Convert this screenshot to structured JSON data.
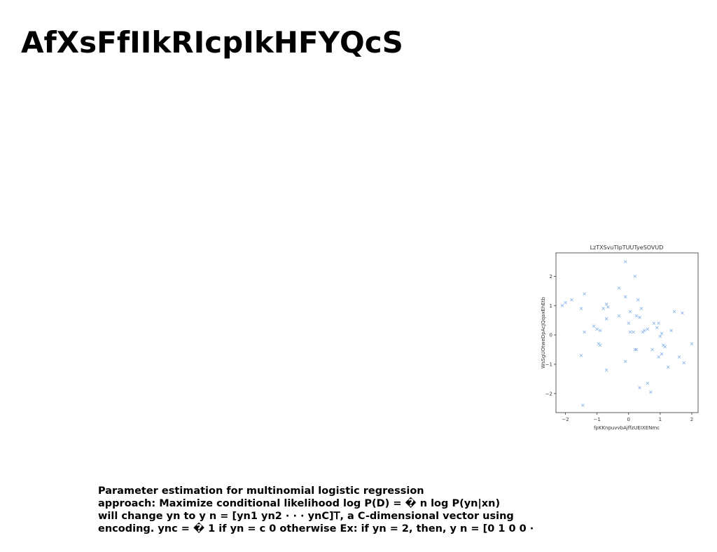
{
  "title": "AfXsFfIIkRIcpIkHFYQcS",
  "figure": {
    "chart_data": {
      "type": "scatter",
      "title": "LzTXSvuTIpTUUTyeSOVUD",
      "xlabel": "fpKKnpuvvbAjffzUEIXENmc",
      "ylabel": "WsSgUOtweDpAcJQqaxEhEtb",
      "xlim": [
        -2.3,
        2.2
      ],
      "ylim": [
        -2.65,
        2.8
      ],
      "xticks": [
        -2,
        -1,
        0,
        1,
        2
      ],
      "yticks": [
        -2,
        -1,
        0,
        1,
        2
      ],
      "xtick_labels": [
        "−2",
        "−1",
        "0",
        "1",
        "2"
      ],
      "ytick_labels": [
        "−2",
        "−1",
        "0",
        "1",
        "2"
      ],
      "grid": false,
      "marker": "x",
      "color": "#8fb8ea",
      "points": [
        [
          -0.1,
          2.5
        ],
        [
          0.2,
          2.0
        ],
        [
          -0.3,
          1.6
        ],
        [
          -1.4,
          1.4
        ],
        [
          -0.1,
          1.3
        ],
        [
          -1.8,
          1.2
        ],
        [
          0.3,
          1.2
        ],
        [
          -2.1,
          1.0
        ],
        [
          -2.0,
          1.1
        ],
        [
          -0.7,
          1.05
        ],
        [
          -1.5,
          0.9
        ],
        [
          -0.8,
          0.9
        ],
        [
          -0.65,
          0.95
        ],
        [
          0.4,
          0.9
        ],
        [
          1.45,
          0.8
        ],
        [
          0.05,
          0.8
        ],
        [
          1.7,
          0.75
        ],
        [
          0.25,
          0.65
        ],
        [
          0.35,
          0.6
        ],
        [
          -0.3,
          0.65
        ],
        [
          -0.7,
          0.55
        ],
        [
          0.0,
          0.4
        ],
        [
          -1.1,
          0.3
        ],
        [
          -1.0,
          0.2
        ],
        [
          -0.9,
          0.15
        ],
        [
          0.5,
          0.15
        ],
        [
          0.6,
          0.2
        ],
        [
          0.8,
          0.4
        ],
        [
          0.95,
          0.4
        ],
        [
          0.9,
          0.25
        ],
        [
          1.35,
          0.15
        ],
        [
          0.05,
          0.1
        ],
        [
          0.15,
          0.1
        ],
        [
          0.45,
          0.1
        ],
        [
          -1.4,
          0.1
        ],
        [
          1.05,
          0.05
        ],
        [
          1.0,
          -0.05
        ],
        [
          -0.95,
          -0.3
        ],
        [
          -0.9,
          -0.35
        ],
        [
          1.1,
          -0.35
        ],
        [
          1.15,
          -0.4
        ],
        [
          2.0,
          -0.3
        ],
        [
          0.2,
          -0.5
        ],
        [
          0.25,
          -0.5
        ],
        [
          0.75,
          -0.5
        ],
        [
          -1.5,
          -0.7
        ],
        [
          1.05,
          -0.65
        ],
        [
          0.95,
          -0.75
        ],
        [
          1.6,
          -0.75
        ],
        [
          -0.1,
          -0.9
        ],
        [
          1.75,
          -0.95
        ],
        [
          1.25,
          -1.1
        ],
        [
          -0.7,
          -1.2
        ],
        [
          0.6,
          -1.65
        ],
        [
          0.35,
          -1.8
        ],
        [
          0.7,
          -1.95
        ],
        [
          -1.45,
          -2.4
        ]
      ]
    }
  },
  "caption": {
    "lines": [
      "Parameter estimation for multinomial logistic regression",
      "approach: Maximize conditional likelihood log P(D) = � n log P(yn|xn)",
      "will change yn to y n = [yn1 yn2 · · · ynC]𝖳, a C-dimensional vector using",
      "encoding. ync = � 1 if yn = c 0 otherwise Ex: if yn = 2, then, y n = [0 1 0 0 ·"
    ]
  }
}
